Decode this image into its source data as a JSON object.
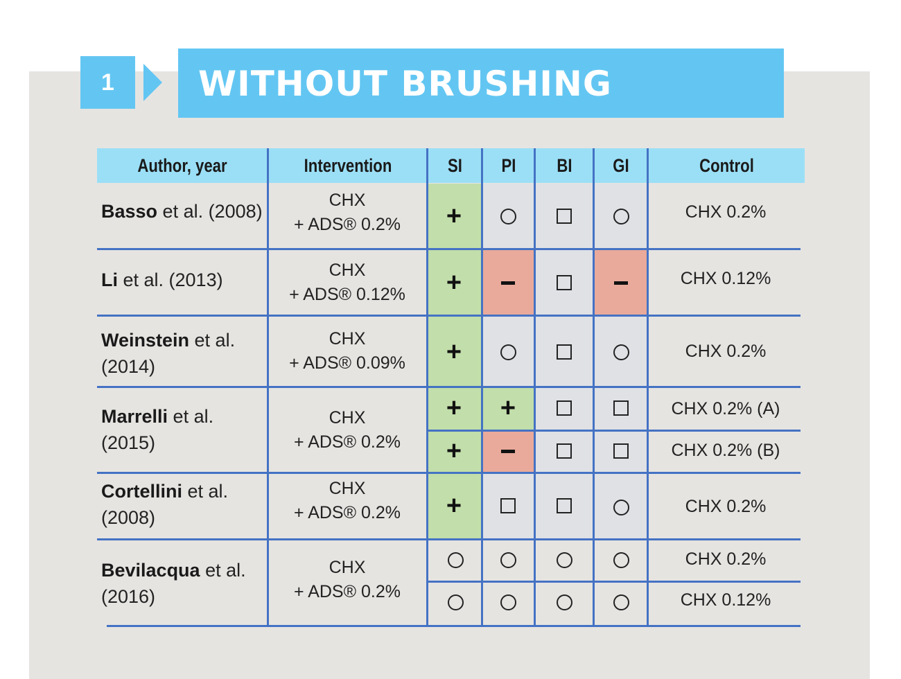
{
  "section": {
    "number": "1",
    "title": "WITHOUT BRUSHING"
  },
  "table": {
    "headers": [
      "Author, year",
      "Intervention",
      "SI",
      "PI",
      "BI",
      "GI",
      "Control"
    ],
    "rows": [
      {
        "author_bold": "Basso",
        "author_rest": " et al. (2008)",
        "author_line2": "",
        "intervention_line1": "CHX",
        "intervention_line2": "+ ADS® 0.2%",
        "controls": [
          "CHX 0.2%"
        ],
        "SI": [
          "+"
        ],
        "PI": [
          "○"
        ],
        "BI": [
          "□"
        ],
        "GI": [
          "○"
        ]
      },
      {
        "author_bold": "Li",
        "author_rest": " et al. (2013)",
        "author_line2": "",
        "intervention_line1": "CHX",
        "intervention_line2": "+ ADS® 0.12%",
        "controls": [
          "CHX 0.12%"
        ],
        "SI": [
          "+"
        ],
        "PI": [
          "–"
        ],
        "BI": [
          "□"
        ],
        "GI": [
          "–"
        ]
      },
      {
        "author_bold": "Weinstein",
        "author_rest": " et al.",
        "author_line2": "(2014)",
        "intervention_line1": "CHX",
        "intervention_line2": "+ ADS® 0.09%",
        "controls": [
          "CHX 0.2%"
        ],
        "SI": [
          "+"
        ],
        "PI": [
          "○"
        ],
        "BI": [
          "□"
        ],
        "GI": [
          "○"
        ]
      },
      {
        "author_bold": "Marrelli",
        "author_rest": " et al.",
        "author_line2": "(2015)",
        "intervention_line1": "CHX",
        "intervention_line2": "+ ADS® 0.2%",
        "controls": [
          "CHX 0.2% (A)",
          "CHX 0.2% (B)"
        ],
        "SI": [
          "+",
          "+"
        ],
        "PI": [
          "+",
          "–"
        ],
        "BI": [
          "□",
          "□"
        ],
        "GI": [
          "□",
          "□"
        ]
      },
      {
        "author_bold": "Cortellini",
        "author_rest": " et al.",
        "author_line2": "(2008)",
        "intervention_line1": "CHX",
        "intervention_line2": "+ ADS® 0.2%",
        "controls": [
          "CHX 0.2%"
        ],
        "SI": [
          "+"
        ],
        "PI": [
          "□"
        ],
        "BI": [
          "□"
        ],
        "GI": [
          "○"
        ]
      },
      {
        "author_bold": "Bevilacqua",
        "author_rest": " et al.",
        "author_line2": "(2016)",
        "intervention_line1": "CHX",
        "intervention_line2": "+ ADS® 0.2%",
        "controls": [
          "CHX 0.2%",
          "CHX 0.12%"
        ],
        "SI": [
          "○",
          "○"
        ],
        "PI": [
          "○",
          "○"
        ],
        "BI": [
          "○",
          "○"
        ],
        "GI": [
          "○",
          "○"
        ]
      }
    ]
  },
  "colors": {
    "accent": "#63c6f2",
    "header": "#9bdff6",
    "positive": "#c2deaa",
    "negative": "#e9aa9b",
    "neutral": "#dfe1e5",
    "rules": "#4472c4",
    "panel": "#e6e4e1"
  }
}
